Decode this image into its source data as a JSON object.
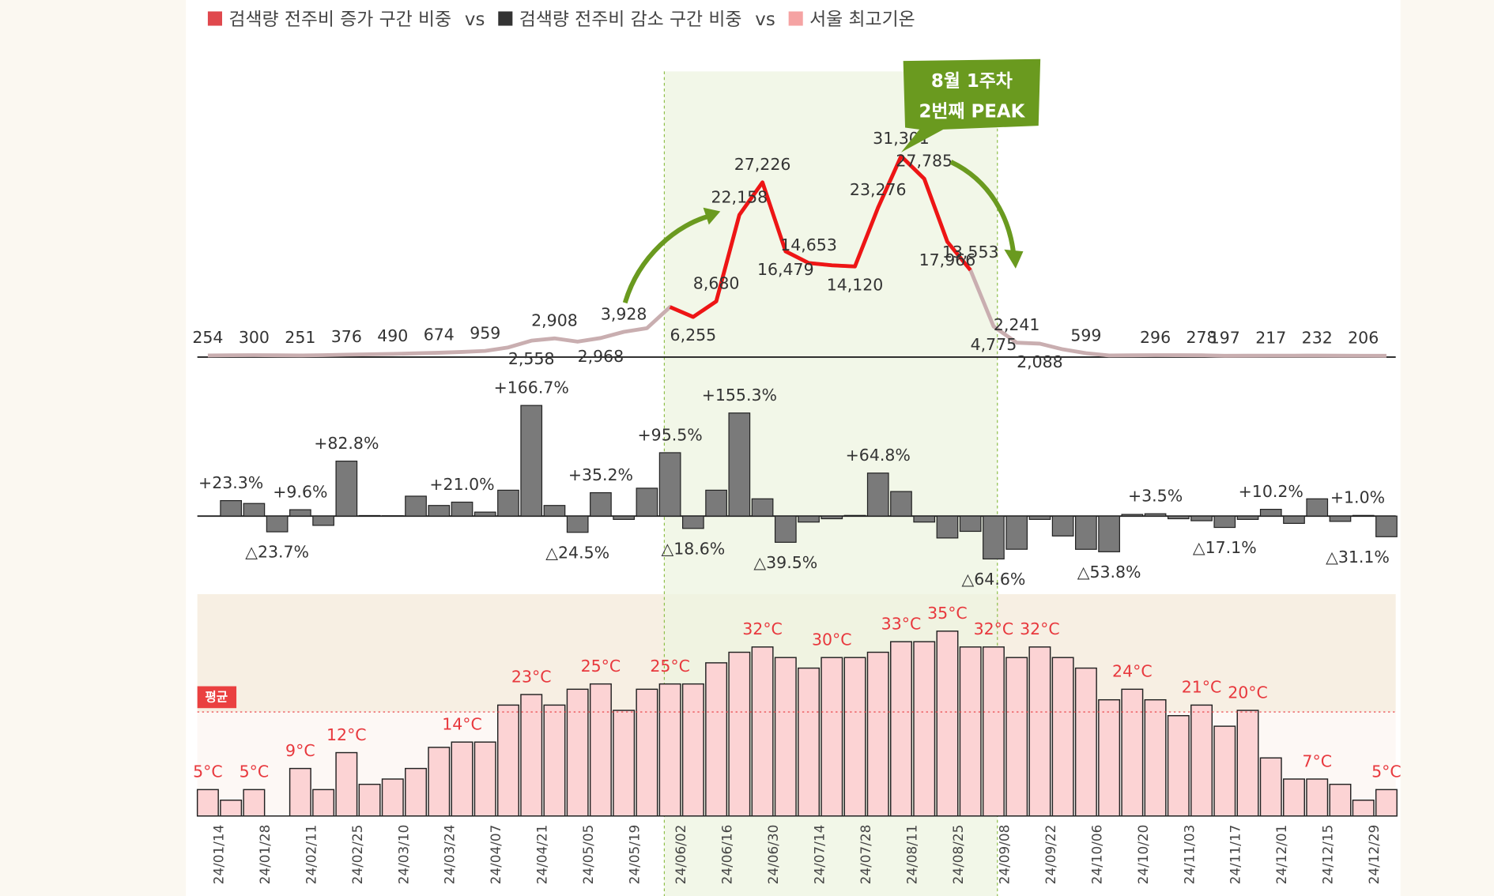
{
  "legend": {
    "items": [
      {
        "name": "검색량 전주비 증가 구간 비중",
        "color": "#e0484d"
      },
      {
        "name": "검색량 전주비 감소 구간 비중",
        "color": "#333333"
      },
      {
        "name": "서울 최고기온",
        "color": "#f5a3a3"
      }
    ],
    "separator": "vs"
  },
  "chart_data": [
    {
      "type": "line",
      "ylim": [
        0,
        46000
      ],
      "color": "#c9aeb0",
      "highlight_color": "#ee1515",
      "values": [
        254,
        280,
        300,
        270,
        251,
        300,
        376,
        430,
        490,
        580,
        674,
        800,
        959,
        1500,
        2558,
        2908,
        2400,
        2968,
        3928,
        4500,
        7800,
        6255,
        8680,
        22158,
        27226,
        16479,
        14653,
        14300,
        14120,
        23276,
        31301,
        27785,
        17966,
        13553,
        4775,
        2241,
        2088,
        1200,
        599,
        250,
        270,
        296,
        290,
        278,
        197,
        210,
        217,
        220,
        232,
        215,
        206,
        200
      ],
      "value_labels": [
        "254",
        null,
        "300",
        null,
        "251",
        null,
        "376",
        null,
        "490",
        null,
        "674",
        null,
        "959",
        null,
        "2,558",
        "2,908",
        null,
        "2,968",
        "3,928",
        null,
        null,
        "6,255",
        "8,680",
        "22,158",
        "27,226",
        "16,479",
        "14,653",
        null,
        "14,120",
        "23,276",
        "31,301",
        "27,785",
        "17,966",
        "13,553",
        "4,775",
        "2,241",
        "2,088",
        null,
        "599",
        null,
        null,
        "296",
        null,
        "278",
        "197",
        null,
        "217",
        null,
        "232",
        null,
        "206",
        null
      ],
      "annotation": [
        "8월 1주차",
        "2번째 PEAK"
      ],
      "annotation_color": "#6a9a1f"
    },
    {
      "type": "bar",
      "ylim": [
        -105,
        225
      ],
      "color": "#7a7a7a",
      "values": [
        null,
        23.3,
        19,
        -23.7,
        9.6,
        -14,
        82.8,
        0.8,
        0.5,
        30,
        16,
        21.0,
        6,
        39,
        166.7,
        16,
        -24.5,
        35.2,
        -5,
        42,
        95.5,
        -18.6,
        39,
        155.3,
        26,
        -39.5,
        -9,
        -4,
        1,
        64.8,
        37,
        -9,
        -33,
        -23,
        -64.6,
        -50,
        -5,
        -30,
        -50.1,
        -53.8,
        2.5,
        3.5,
        -4,
        -7,
        -17.1,
        -5,
        10.2,
        -11,
        26,
        -8,
        1.0,
        -31.1
      ],
      "value_labels": [
        null,
        "+23.3%",
        null,
        "△23.7%",
        "+9.6%",
        null,
        "+82.8%",
        null,
        null,
        null,
        null,
        "+21.0%",
        null,
        null,
        "+166.7%",
        null,
        "△24.5%",
        "+35.2%",
        null,
        null,
        "+95.5%",
        "△18.6%",
        null,
        "+155.3%",
        null,
        "△39.5%",
        null,
        null,
        null,
        "+64.8%",
        null,
        null,
        null,
        null,
        "△64.6%",
        null,
        null,
        null,
        null,
        "△53.8%",
        null,
        "+3.5%",
        null,
        null,
        "△17.1%",
        null,
        "+10.2%",
        null,
        null,
        null,
        "+1.0%",
        "△31.1%"
      ]
    },
    {
      "type": "bar",
      "ylim": [
        0,
        42
      ],
      "color": "#fcd3d4",
      "label_color": "#e8383d",
      "categories": [
        "24/01/14",
        null,
        "24/01/28",
        null,
        "24/02/11",
        null,
        "24/02/25",
        null,
        "24/03/10",
        null,
        "24/03/24",
        null,
        "24/04/07",
        null,
        "24/04/21",
        null,
        "24/05/05",
        null,
        "24/05/19",
        null,
        "24/06/02",
        null,
        "24/06/16",
        null,
        "24/06/30",
        null,
        "24/07/14",
        null,
        "24/07/28",
        null,
        "24/08/11",
        null,
        "24/08/25",
        null,
        "24/09/08",
        null,
        "24/09/22",
        null,
        "24/10/06",
        null,
        "24/10/20",
        null,
        "24/11/03",
        null,
        "24/11/17",
        null,
        "24/12/01",
        null,
        "24/12/15",
        null,
        "24/12/29",
        null
      ],
      "values": [
        5,
        3,
        5,
        null,
        9,
        5,
        12,
        6,
        7,
        9,
        13,
        14,
        14,
        21,
        23,
        21,
        24,
        25,
        20,
        24,
        25,
        25,
        29,
        31,
        32,
        30,
        28,
        30,
        30,
        31,
        33,
        33,
        35,
        32,
        32,
        30,
        32,
        30,
        28,
        22,
        24,
        22,
        19,
        21,
        17,
        20,
        11,
        7,
        7,
        6,
        3,
        5
      ],
      "value_labels": [
        "5°C",
        null,
        "5°C",
        null,
        "9°C",
        null,
        "12°C",
        null,
        null,
        null,
        null,
        "14°C",
        null,
        null,
        "23°C",
        null,
        null,
        "25°C",
        null,
        null,
        "25°C",
        null,
        null,
        null,
        "32°C",
        null,
        null,
        "30°C",
        null,
        null,
        "33°C",
        null,
        "35°C",
        null,
        "32°C",
        null,
        "32°C",
        null,
        null,
        null,
        "24°C",
        null,
        null,
        "21°C",
        null,
        "20°C",
        null,
        null,
        "7°C",
        null,
        null,
        "5°C"
      ],
      "average": 19.7,
      "average_label": "평균",
      "highlight_x": [
        "24/06/02",
        "24/09/08"
      ]
    }
  ]
}
